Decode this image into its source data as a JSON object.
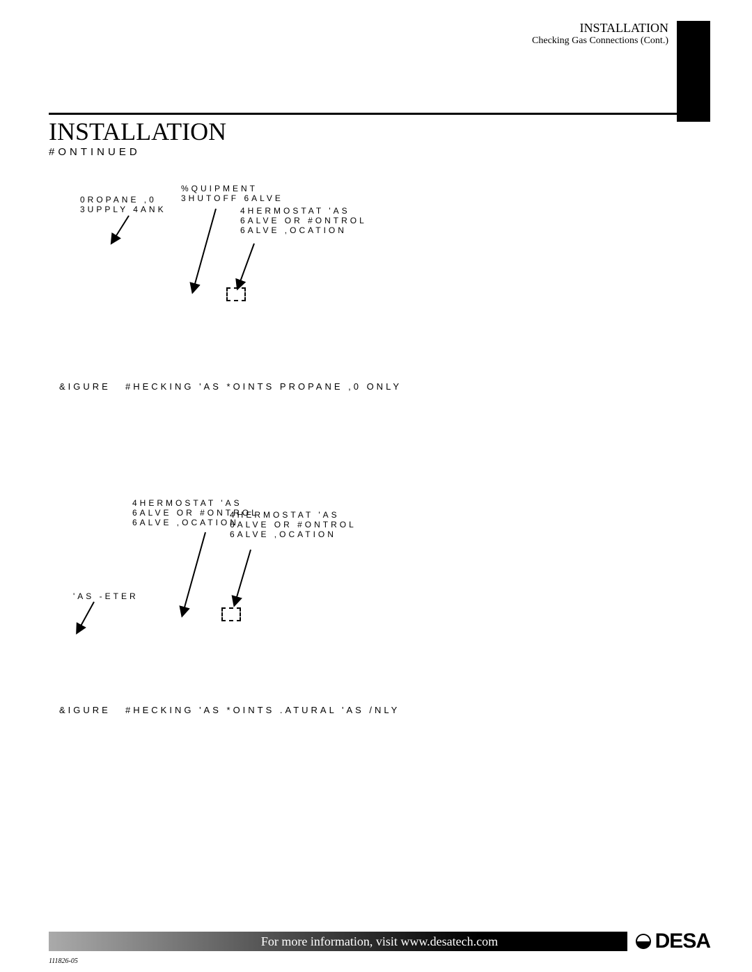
{
  "header": {
    "title": "INSTALLATION",
    "subtitle": "Checking Gas Connections (Cont.)"
  },
  "main": {
    "title": "INSTALLATION",
    "continued": "#ONTINUED"
  },
  "figure1": {
    "label_propane_tank": "0ROPANE ,0\n3UPPLY 4ANK",
    "label_equipment": "%QUIPMENT\n3HUTOFF 6ALVE",
    "label_thermostat": "4HERMOSTAT 'AS\n6ALVE OR #ONTROL\n6ALVE ,OCATION",
    "caption_fig": "&IGURE",
    "caption_text": "#HECKING 'AS *OINTS  PROPANE ,0 ONLY"
  },
  "figure2": {
    "label_thermostat1": "4HERMOSTAT 'AS\n6ALVE OR #ONTROL\n6ALVE ,OCATION",
    "label_thermostat2": "4HERMOSTAT 'AS\n6ALVE OR #ONTROL\n6ALVE ,OCATION",
    "label_gas_meter": "'AS -ETER",
    "caption_fig": "&IGURE",
    "caption_text": "#HECKING 'AS *OINTS  .ATURAL 'AS /NLY"
  },
  "footer": {
    "text": "For more information, visit www.desatech.com",
    "logo": "DESA",
    "doc_code": "111826-05"
  },
  "colors": {
    "black": "#000000",
    "white": "#ffffff"
  }
}
